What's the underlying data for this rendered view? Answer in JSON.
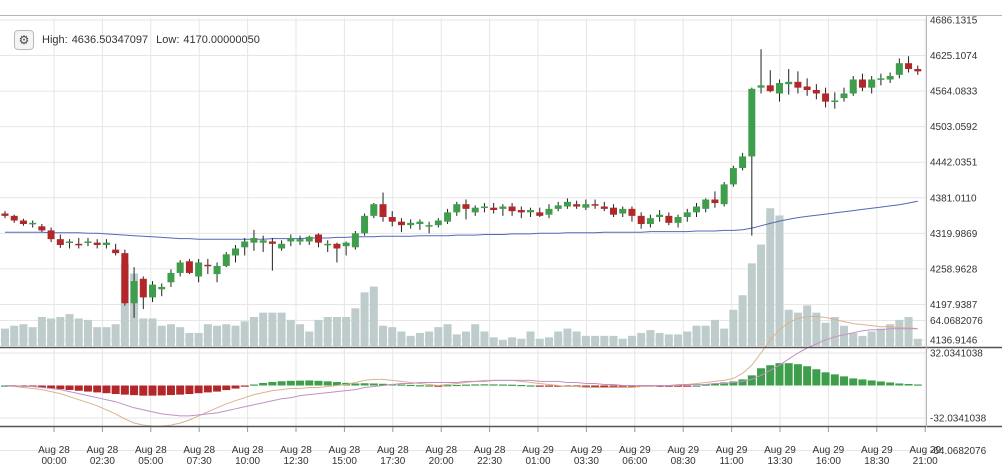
{
  "header": {
    "settings_icon": "gear-icon",
    "high_label": "High:",
    "high_value": "4636.50347097",
    "low_label": "Low:",
    "low_value": "4170.00000050"
  },
  "colors": {
    "up": "#3f9e4c",
    "down": "#b3262a",
    "volume": "#bfcccc",
    "ma": "#5468b8",
    "macd_line": "#d9b38c",
    "signal_line": "#c48fc7",
    "grid": "#e6e6e6"
  },
  "chart_data": [
    {
      "type": "candlestick",
      "title": "",
      "y_ticks": [
        "4686.1315",
        "4625.1074",
        "4564.0833",
        "4503.0592",
        "4442.0351",
        "4381.0110",
        "4319.9869",
        "4258.9628",
        "4197.9387",
        "4136.9146"
      ],
      "ylim": [
        4136.9146,
        4686.1315
      ],
      "x_ticks": [
        {
          "date": "Aug 28",
          "time": "00:00"
        },
        {
          "date": "Aug 28",
          "time": "02:30"
        },
        {
          "date": "Aug 28",
          "time": "05:00"
        },
        {
          "date": "Aug 28",
          "time": "07:30"
        },
        {
          "date": "Aug 28",
          "time": "10:00"
        },
        {
          "date": "Aug 28",
          "time": "12:30"
        },
        {
          "date": "Aug 28",
          "time": "15:00"
        },
        {
          "date": "Aug 28",
          "time": "17:30"
        },
        {
          "date": "Aug 28",
          "time": "20:00"
        },
        {
          "date": "Aug 28",
          "time": "22:30"
        },
        {
          "date": "Aug 29",
          "time": "01:00"
        },
        {
          "date": "Aug 29",
          "time": "03:30"
        },
        {
          "date": "Aug 29",
          "time": "06:00"
        },
        {
          "date": "Aug 29",
          "time": "08:30"
        },
        {
          "date": "Aug 29",
          "time": "11:00"
        },
        {
          "date": "Aug 29",
          "time": "13:30"
        },
        {
          "date": "Aug 29",
          "time": "16:00"
        },
        {
          "date": "Aug 29",
          "time": "18:30"
        },
        {
          "date": "Aug 29",
          "time": "21:00"
        }
      ],
      "candles": [
        [
          4354,
          4358,
          4346,
          4350
        ],
        [
          4350,
          4352,
          4338,
          4342
        ],
        [
          4342,
          4345,
          4333,
          4336
        ],
        [
          4336,
          4342,
          4330,
          4338
        ],
        [
          4332,
          4336,
          4322,
          4325
        ],
        [
          4325,
          4330,
          4305,
          4310
        ],
        [
          4310,
          4318,
          4295,
          4300
        ],
        [
          4304,
          4310,
          4294,
          4306
        ],
        [
          4302,
          4312,
          4294,
          4300
        ],
        [
          4304,
          4312,
          4298,
          4306
        ],
        [
          4304,
          4310,
          4294,
          4300
        ],
        [
          4300,
          4310,
          4294,
          4304
        ],
        [
          4292,
          4302,
          4282,
          4286
        ],
        [
          4286,
          4292,
          4196,
          4200
        ],
        [
          4200,
          4262,
          4175,
          4238
        ],
        [
          4242,
          4246,
          4190,
          4210
        ],
        [
          4210,
          4238,
          4202,
          4232
        ],
        [
          4224,
          4234,
          4212,
          4228
        ],
        [
          4236,
          4258,
          4228,
          4252
        ],
        [
          4252,
          4274,
          4246,
          4270
        ],
        [
          4272,
          4276,
          4250,
          4252
        ],
        [
          4246,
          4276,
          4236,
          4270
        ],
        [
          4266,
          4276,
          4250,
          4264
        ],
        [
          4250,
          4270,
          4236,
          4264
        ],
        [
          4264,
          4288,
          4262,
          4284
        ],
        [
          4282,
          4300,
          4270,
          4294
        ],
        [
          4296,
          4312,
          4282,
          4306
        ],
        [
          4304,
          4326,
          4290,
          4312
        ],
        [
          4304,
          4316,
          4288,
          4308
        ],
        [
          4306,
          4312,
          4256,
          4302
        ],
        [
          4294,
          4308,
          4290,
          4302
        ],
        [
          4306,
          4318,
          4298,
          4312
        ],
        [
          4306,
          4316,
          4300,
          4310
        ],
        [
          4306,
          4316,
          4300,
          4314
        ],
        [
          4318,
          4320,
          4296,
          4304
        ],
        [
          4300,
          4308,
          4288,
          4302
        ],
        [
          4302,
          4304,
          4270,
          4294
        ],
        [
          4298,
          4306,
          4282,
          4304
        ],
        [
          4296,
          4324,
          4292,
          4320
        ],
        [
          4320,
          4354,
          4316,
          4350
        ],
        [
          4350,
          4372,
          4346,
          4370
        ],
        [
          4370,
          4390,
          4340,
          4348
        ],
        [
          4348,
          4358,
          4332,
          4340
        ],
        [
          4340,
          4346,
          4322,
          4334
        ],
        [
          4334,
          4344,
          4328,
          4338
        ],
        [
          4336,
          4344,
          4326,
          4340
        ],
        [
          4332,
          4340,
          4320,
          4334
        ],
        [
          4334,
          4346,
          4330,
          4342
        ],
        [
          4340,
          4362,
          4336,
          4356
        ],
        [
          4356,
          4374,
          4350,
          4370
        ],
        [
          4370,
          4378,
          4344,
          4362
        ],
        [
          4356,
          4368,
          4350,
          4364
        ],
        [
          4364,
          4372,
          4356,
          4366
        ],
        [
          4364,
          4372,
          4354,
          4360
        ],
        [
          4362,
          4370,
          4350,
          4366
        ],
        [
          4366,
          4372,
          4350,
          4358
        ],
        [
          4360,
          4366,
          4346,
          4356
        ],
        [
          4356,
          4364,
          4348,
          4360
        ],
        [
          4356,
          4364,
          4348,
          4350
        ],
        [
          4352,
          4370,
          4346,
          4362
        ],
        [
          4362,
          4374,
          4358,
          4368
        ],
        [
          4366,
          4380,
          4362,
          4374
        ],
        [
          4370,
          4376,
          4362,
          4366
        ],
        [
          4364,
          4378,
          4360,
          4370
        ],
        [
          4370,
          4378,
          4362,
          4368
        ],
        [
          4366,
          4374,
          4358,
          4362
        ],
        [
          4364,
          4370,
          4348,
          4352
        ],
        [
          4354,
          4366,
          4348,
          4362
        ],
        [
          4362,
          4366,
          4340,
          4350
        ],
        [
          4350,
          4356,
          4328,
          4336
        ],
        [
          4336,
          4352,
          4330,
          4346
        ],
        [
          4348,
          4360,
          4340,
          4352
        ],
        [
          4350,
          4356,
          4334,
          4338
        ],
        [
          4338,
          4352,
          4330,
          4348
        ],
        [
          4348,
          4362,
          4340,
          4356
        ],
        [
          4356,
          4372,
          4348,
          4366
        ],
        [
          4362,
          4380,
          4356,
          4378
        ],
        [
          4378,
          4392,
          4364,
          4372
        ],
        [
          4370,
          4408,
          4366,
          4404
        ],
        [
          4404,
          4436,
          4400,
          4432
        ],
        [
          4432,
          4458,
          4428,
          4452
        ],
        [
          4452,
          4570,
          4316,
          4568
        ],
        [
          4570,
          4636,
          4560,
          4574
        ],
        [
          4574,
          4600,
          4562,
          4564
        ],
        [
          4560,
          4584,
          4546,
          4578
        ],
        [
          4576,
          4602,
          4558,
          4580
        ],
        [
          4580,
          4598,
          4560,
          4570
        ],
        [
          4572,
          4586,
          4556,
          4566
        ],
        [
          4566,
          4576,
          4550,
          4560
        ],
        [
          4560,
          4570,
          4536,
          4546
        ],
        [
          4546,
          4562,
          4534,
          4548
        ],
        [
          4552,
          4570,
          4546,
          4560
        ],
        [
          4560,
          4590,
          4556,
          4584
        ],
        [
          4584,
          4594,
          4564,
          4570
        ],
        [
          4570,
          4590,
          4560,
          4584
        ],
        [
          4584,
          4594,
          4574,
          4586
        ],
        [
          4584,
          4596,
          4578,
          4590
        ],
        [
          4592,
          4620,
          4586,
          4612
        ],
        [
          4612,
          4624,
          4596,
          4602
        ],
        [
          4602,
          4608,
          4592,
          4598
        ]
      ],
      "volume_relative": [
        0.12,
        0.14,
        0.15,
        0.13,
        0.2,
        0.19,
        0.2,
        0.22,
        0.19,
        0.18,
        0.13,
        0.13,
        0.15,
        0.57,
        0.5,
        0.19,
        0.19,
        0.14,
        0.15,
        0.13,
        0.09,
        0.09,
        0.15,
        0.14,
        0.15,
        0.14,
        0.17,
        0.2,
        0.23,
        0.23,
        0.23,
        0.18,
        0.15,
        0.1,
        0.18,
        0.2,
        0.2,
        0.2,
        0.26,
        0.37,
        0.41,
        0.14,
        0.13,
        0.1,
        0.07,
        0.09,
        0.1,
        0.13,
        0.15,
        0.08,
        0.1,
        0.15,
        0.1,
        0.06,
        0.04,
        0.06,
        0.05,
        0.1,
        0.05,
        0.06,
        0.1,
        0.12,
        0.1,
        0.07,
        0.07,
        0.07,
        0.07,
        0.05,
        0.07,
        0.09,
        0.11,
        0.09,
        0.08,
        0.08,
        0.1,
        0.14,
        0.14,
        0.18,
        0.12,
        0.25,
        0.35,
        0.57,
        0.7,
        0.95,
        0.9,
        0.25,
        0.23,
        0.28,
        0.23,
        0.16,
        0.2,
        0.14,
        0.09,
        0.07,
        0.1,
        0.12,
        0.15,
        0.18,
        0.2,
        0.05
      ],
      "ma_line": [
        4322,
        4322,
        4322,
        4322,
        4322,
        4321,
        4321,
        4321,
        4321,
        4320,
        4320,
        4319,
        4318,
        4317,
        4316,
        4315,
        4314,
        4313,
        4312,
        4311,
        4311,
        4310,
        4310,
        4310,
        4310,
        4310,
        4310,
        4310,
        4310,
        4311,
        4311,
        4311,
        4311,
        4312,
        4312,
        4312,
        4313,
        4313,
        4314,
        4314,
        4314,
        4315,
        4315,
        4315,
        4315,
        4316,
        4316,
        4316,
        4316,
        4317,
        4317,
        4317,
        4318,
        4318,
        4318,
        4319,
        4319,
        4319,
        4320,
        4320,
        4320,
        4321,
        4321,
        4321,
        4321,
        4322,
        4322,
        4322,
        4322,
        4322,
        4323,
        4323,
        4323,
        4323,
        4323,
        4324,
        4324,
        4324,
        4325,
        4325,
        4326,
        4329,
        4333,
        4337,
        4341,
        4344,
        4347,
        4349,
        4351,
        4353,
        4355,
        4357,
        4359,
        4361,
        4363,
        4365,
        4367,
        4369,
        4372,
        4375
      ],
      "moving_average_color": "#5468b8"
    },
    {
      "type": "histogram",
      "title": "",
      "y_ticks": [
        "64.0682076",
        "32.0341038",
        "-32.0341038",
        "-64.0682076"
      ],
      "ylim": [
        -76,
        76
      ],
      "histogram": [
        0,
        -0.5,
        -1,
        -1.5,
        -2,
        -2.8,
        -3.6,
        -4.4,
        -5.2,
        -6,
        -6.8,
        -7.6,
        -8.4,
        -9,
        -9.5,
        -10,
        -10,
        -9.8,
        -9.4,
        -9,
        -8.4,
        -7.6,
        -6.8,
        -6,
        -4.5,
        -3,
        -1,
        1,
        2.5,
        3.5,
        4.2,
        4.6,
        4.8,
        5,
        4.6,
        4.1,
        3.4,
        2.6,
        2,
        2.2,
        2,
        1.7,
        1.3,
        1,
        0.6,
        0.3,
        0.1,
        -0.1,
        0.3,
        0.6,
        0.9,
        1.1,
        1.2,
        1.1,
        1,
        0.8,
        0.5,
        0.1,
        -0.3,
        -0.7,
        -1,
        -1.1,
        -1.2,
        -1.3,
        -1.4,
        -1.5,
        -1.3,
        -1.2,
        -1,
        -0.8,
        -0.6,
        -0.5,
        -0.4,
        -0.3,
        -0.2,
        0,
        1,
        2,
        3,
        4,
        6,
        10,
        17,
        20,
        22,
        22,
        21,
        19,
        16,
        13,
        11,
        9,
        7,
        6,
        5,
        4,
        3,
        2,
        1.5,
        1
      ],
      "macd": [
        0,
        -1,
        -2,
        -3,
        -4,
        -6,
        -8,
        -11,
        -14,
        -17,
        -20,
        -24,
        -28,
        -33,
        -37,
        -39,
        -40,
        -40,
        -39,
        -37,
        -34,
        -30,
        -26,
        -22,
        -18,
        -15,
        -12,
        -9,
        -7,
        -5,
        -4,
        -3,
        -3,
        -2,
        -2,
        -1,
        0,
        1,
        3,
        5,
        6,
        6,
        5,
        4,
        3,
        2,
        1,
        0,
        1,
        2,
        3,
        4,
        5,
        5,
        5,
        5,
        4,
        3,
        2,
        1,
        0,
        -1,
        -1,
        -2,
        -2,
        -2,
        -2,
        -2,
        -2,
        -1,
        -1,
        0,
        0,
        1,
        1,
        2,
        3,
        4,
        5,
        7,
        12,
        20,
        32,
        45,
        55,
        62,
        66,
        68,
        68,
        67,
        65,
        63,
        61,
        60,
        59,
        58,
        58,
        57,
        57,
        56
      ],
      "signal": [
        0,
        0,
        -1,
        -1,
        -2,
        -3,
        -4,
        -6,
        -8,
        -10,
        -12,
        -14,
        -16,
        -19,
        -22,
        -24,
        -26,
        -28,
        -29,
        -30,
        -30,
        -29,
        -28,
        -27,
        -25,
        -23,
        -21,
        -19,
        -17,
        -15,
        -13,
        -12,
        -10,
        -9,
        -8,
        -7,
        -6,
        -5,
        -4,
        -2,
        -1,
        0,
        1,
        2,
        2,
        3,
        3,
        3,
        3,
        3,
        4,
        4,
        4,
        5,
        5,
        5,
        5,
        5,
        4,
        4,
        4,
        3,
        3,
        2,
        2,
        1,
        1,
        0,
        0,
        0,
        0,
        0,
        0,
        0,
        1,
        1,
        1,
        2,
        2,
        3,
        4,
        6,
        10,
        15,
        20,
        26,
        32,
        37,
        41,
        45,
        48,
        50,
        52,
        54,
        55,
        55,
        56,
        56,
        56,
        56
      ]
    }
  ]
}
